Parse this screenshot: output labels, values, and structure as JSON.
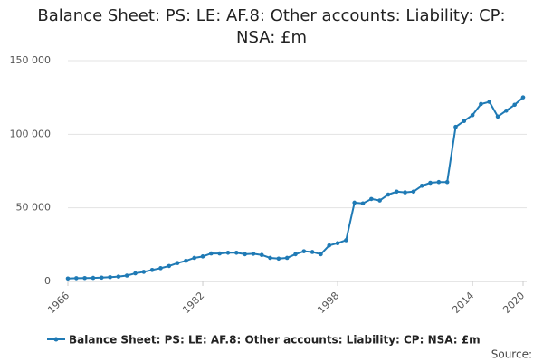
{
  "chart_data": {
    "type": "line",
    "title": "Balance Sheet: PS: LE: AF.8: Other accounts: Liability: CP: NSA: £m",
    "x": [
      1966,
      1967,
      1968,
      1969,
      1970,
      1971,
      1972,
      1973,
      1974,
      1975,
      1976,
      1977,
      1978,
      1979,
      1980,
      1981,
      1982,
      1983,
      1984,
      1985,
      1986,
      1987,
      1988,
      1989,
      1990,
      1991,
      1992,
      1993,
      1994,
      1995,
      1996,
      1997,
      1998,
      1999,
      2000,
      2001,
      2002,
      2003,
      2004,
      2005,
      2006,
      2007,
      2008,
      2009,
      2010,
      2011,
      2012,
      2013,
      2014,
      2015,
      2016,
      2017,
      2018,
      2019,
      2020
    ],
    "series": [
      {
        "name": "Balance Sheet: PS: LE: AF.8: Other accounts: Liability: CP: NSA: £m",
        "color": "#1f7ab5",
        "values": [
          2000,
          2200,
          2300,
          2400,
          2600,
          2900,
          3300,
          4000,
          5500,
          6500,
          7800,
          9000,
          10500,
          12500,
          14000,
          16000,
          17000,
          19000,
          19000,
          19500,
          19500,
          18500,
          18800,
          18000,
          16000,
          15500,
          16000,
          18500,
          20500,
          20000,
          18500,
          24500,
          26000,
          28000,
          53500,
          53000,
          56000,
          55000,
          59000,
          61000,
          60500,
          61000,
          65000,
          67000,
          67500,
          67500,
          105000,
          109000,
          113000,
          120500,
          122000,
          112000,
          116000,
          120000,
          125000
        ]
      }
    ],
    "xlim": [
      1966,
      2020
    ],
    "xticks": [
      1966,
      1982,
      1998,
      2014,
      2020
    ],
    "ylim": [
      0,
      150000
    ],
    "yticks": [
      0,
      {
        "value": 50000,
        "label": "50 000"
      },
      {
        "value": 100000,
        "label": "100 000"
      },
      {
        "value": 150000,
        "label": "150 000"
      }
    ],
    "grid": true,
    "source": "Source:"
  }
}
